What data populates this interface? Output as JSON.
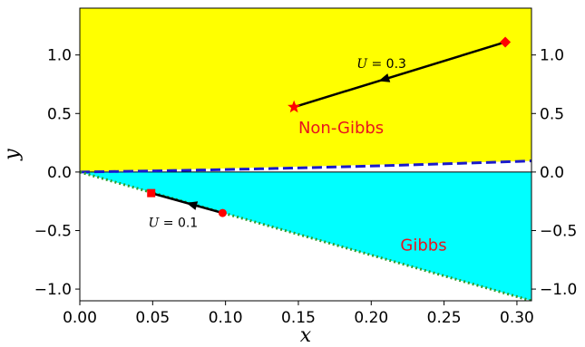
{
  "chart_data": {
    "type": "line",
    "xlabel": "x",
    "ylabel": "y",
    "xlim": [
      0.0,
      0.31
    ],
    "ylim": [
      -1.1,
      1.4
    ],
    "x_ticks": [
      {
        "value": 0.0,
        "label": "0.00"
      },
      {
        "value": 0.05,
        "label": "0.05"
      },
      {
        "value": 0.1,
        "label": "0.10"
      },
      {
        "value": 0.15,
        "label": "0.15"
      },
      {
        "value": 0.2,
        "label": "0.20"
      },
      {
        "value": 0.25,
        "label": "0.25"
      },
      {
        "value": 0.3,
        "label": "0.30"
      }
    ],
    "y_ticks": [
      {
        "value": 1.0,
        "label": "1.0"
      },
      {
        "value": 0.5,
        "label": "0.5"
      },
      {
        "value": 0.0,
        "label": "0.0"
      },
      {
        "value": -0.5,
        "label": "−0.5"
      },
      {
        "value": -1.0,
        "label": "−1.0"
      }
    ],
    "grid": false,
    "regions": [
      {
        "label": "Non-Gibbs",
        "color": "#ffff00",
        "label_pos": [
          0.15,
          0.33
        ]
      },
      {
        "label": "Gibbs",
        "color": "#00ffff",
        "label_pos": [
          0.22,
          -0.67
        ]
      }
    ],
    "boundary_dashed": {
      "color": "#1a1acc",
      "x": [
        0.0,
        0.31
      ],
      "y": [
        0.0,
        0.095
      ]
    },
    "boundary_dotted": {
      "color": "#2e9e2e",
      "x": [
        0.0,
        0.31
      ],
      "y": [
        0.0,
        -1.1
      ]
    },
    "zero_line": {
      "color": "#000000",
      "y": 0.0
    },
    "trajectories": [
      {
        "label_prefix": "U",
        "label_value": " = 0.3",
        "label_pos": [
          0.19,
          0.89
        ],
        "start": {
          "x": 0.292,
          "y": 1.11,
          "marker": "diamond"
        },
        "end": {
          "x": 0.147,
          "y": 0.555,
          "marker": "star"
        },
        "arrow_at": 0.205,
        "color": "#ff0000"
      },
      {
        "label_prefix": "U",
        "label_value": " = 0.1",
        "label_pos": [
          0.047,
          -0.47
        ],
        "start": {
          "x": 0.098,
          "y": -0.35,
          "marker": "circle"
        },
        "end": {
          "x": 0.049,
          "y": -0.18,
          "marker": "square"
        },
        "arrow_at": 0.073,
        "color": "#ff0000"
      }
    ]
  }
}
